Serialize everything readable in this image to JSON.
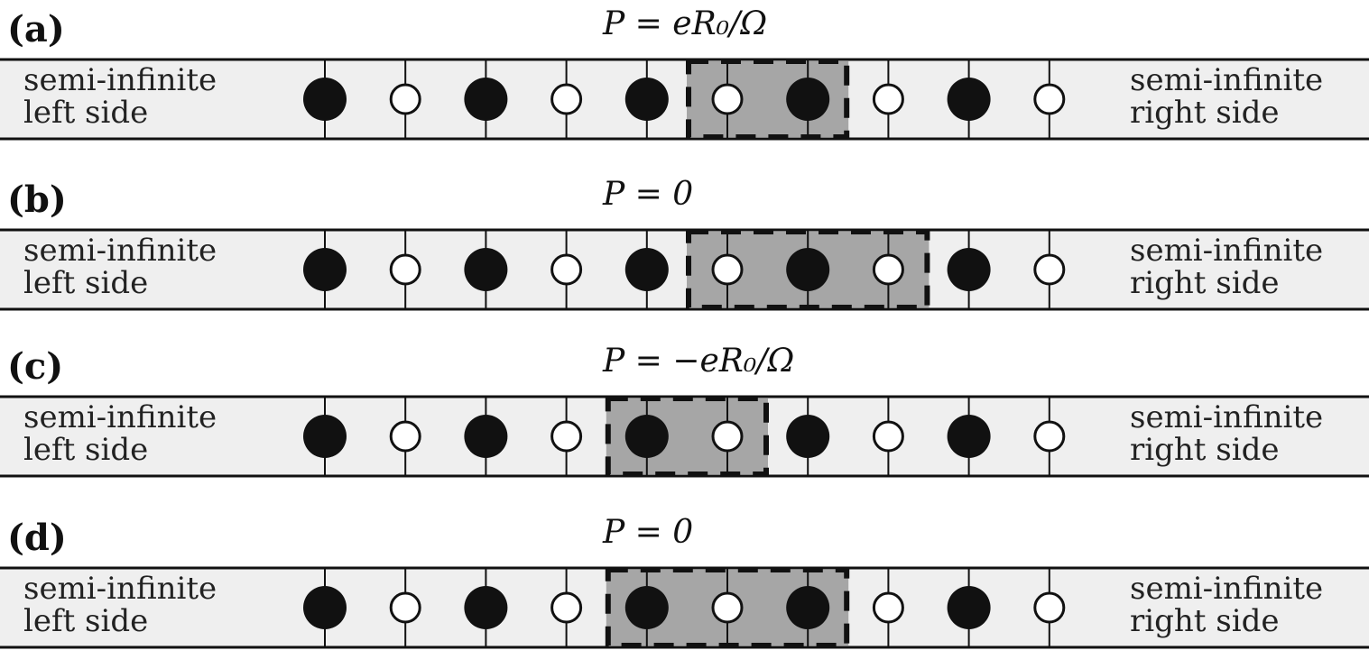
{
  "figure": {
    "panels": [
      {
        "letter": "(a)",
        "formula": "P = eR₀/Ω",
        "left_label": [
          "semi-infinite",
          "left  side"
        ],
        "right_label": [
          "semi-infinite",
          "right  side"
        ],
        "unit_cell_span": [
          5,
          6
        ]
      },
      {
        "letter": "(b)",
        "formula": "P = 0",
        "left_label": [
          "semi-infinite",
          "left  side"
        ],
        "right_label": [
          "semi-infinite",
          "right  side"
        ],
        "unit_cell_span": [
          5,
          7
        ]
      },
      {
        "letter": "(c)",
        "formula": "P = −eR₀/Ω",
        "left_label": [
          "semi-infinite",
          "left  side"
        ],
        "right_label": [
          "semi-infinite",
          "right  side"
        ],
        "unit_cell_span": [
          4,
          5
        ]
      },
      {
        "letter": "(d)",
        "formula": "P = 0",
        "left_label": [
          "semi-infinite",
          "left  side"
        ],
        "right_label": [
          "semi-infinite",
          "right  side"
        ],
        "unit_cell_span": [
          4,
          6
        ]
      }
    ],
    "sites": [
      "filled",
      "open",
      "filled",
      "open",
      "filled",
      "open",
      "filled",
      "open",
      "filled",
      "open"
    ],
    "colors": {
      "chain_background": "#efefef",
      "unit_cell_fill": "#a6a6a6",
      "filled_site": "#111111",
      "open_site": "#ffffff",
      "line": "#111111"
    }
  }
}
